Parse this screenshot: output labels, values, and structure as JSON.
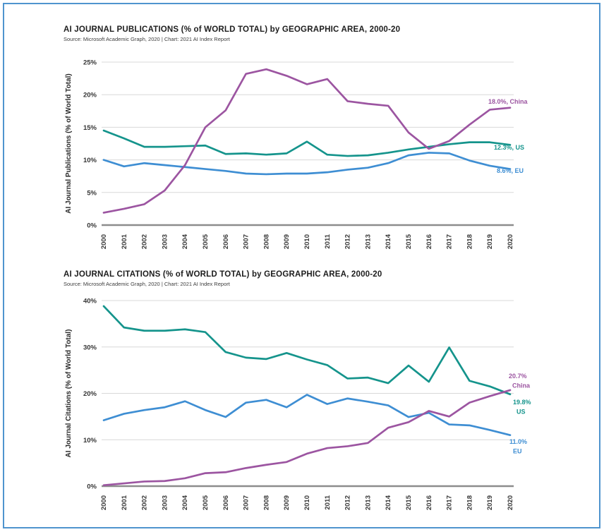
{
  "page": {
    "border_color": "#4f94ce",
    "background": "#ffffff"
  },
  "chart_data": [
    {
      "type": "line",
      "title": "AI JOURNAL PUBLICATIONS (% of WORLD TOTAL) by GEOGRAPHIC AREA, 2000-20",
      "source": "Source: Microsoft Academic Graph, 2020 | Chart: 2021 AI Index Report",
      "ylabel": "AI Journal Publications (% of World Total)",
      "xlabel": "",
      "ylim": [
        0,
        25
      ],
      "ytick_step": 5,
      "ytick_suffix": "%",
      "grid": true,
      "legend_position": "line-end-labels",
      "categories": [
        "2000",
        "2001",
        "2002",
        "2003",
        "2004",
        "2005",
        "2006",
        "2007",
        "2008",
        "2009",
        "2010",
        "2011",
        "2012",
        "2013",
        "2014",
        "2015",
        "2016",
        "2017",
        "2018",
        "2019",
        "2020"
      ],
      "series": [
        {
          "name": "US",
          "color": "#15948c",
          "end_label": [
            "12.3%, US"
          ],
          "values": [
            14.5,
            13.3,
            12.0,
            12.0,
            12.1,
            12.2,
            10.9,
            11.0,
            10.8,
            11.0,
            12.8,
            10.8,
            10.6,
            10.7,
            11.1,
            11.6,
            12.0,
            12.4,
            12.7,
            12.7,
            12.3
          ]
        },
        {
          "name": "EU",
          "color": "#3e8ed3",
          "end_label": [
            "8.6%, EU"
          ],
          "values": [
            10.0,
            9.0,
            9.5,
            9.2,
            8.9,
            8.6,
            8.3,
            7.9,
            7.8,
            7.9,
            7.9,
            8.1,
            8.5,
            8.8,
            9.5,
            10.7,
            11.1,
            11.0,
            9.9,
            9.1,
            8.6
          ]
        },
        {
          "name": "China",
          "color": "#9c55a1",
          "end_label": [
            "18.0%, China"
          ],
          "values": [
            1.9,
            2.5,
            3.2,
            5.3,
            9.2,
            15.0,
            17.6,
            23.2,
            23.9,
            22.9,
            21.6,
            22.4,
            19.0,
            18.6,
            18.3,
            14.2,
            11.7,
            12.9,
            15.4,
            17.7,
            18.0
          ]
        }
      ]
    },
    {
      "type": "line",
      "title": "AI JOURNAL CITATIONS (% of WORLD TOTAL) by GEOGRAPHIC AREA, 2000-20",
      "source": "Source: Microsoft Academic Graph, 2020 | Chart: 2021 AI Index Report",
      "ylabel": "AI Journal Citations (% of World Total)",
      "xlabel": "",
      "ylim": [
        0,
        40
      ],
      "ytick_step": 10,
      "ytick_suffix": "%",
      "grid": true,
      "legend_position": "line-end-labels",
      "categories": [
        "2000",
        "2001",
        "2002",
        "2003",
        "2004",
        "2005",
        "2006",
        "2007",
        "2008",
        "2009",
        "2010",
        "2011",
        "2012",
        "2013",
        "2014",
        "2015",
        "2016",
        "2017",
        "2018",
        "2019",
        "2020"
      ],
      "series": [
        {
          "name": "US",
          "color": "#15948c",
          "end_label": [
            "19.8%",
            "US"
          ],
          "values": [
            38.8,
            34.2,
            33.5,
            33.5,
            33.8,
            33.2,
            28.9,
            27.7,
            27.4,
            28.7,
            27.3,
            26.1,
            23.2,
            23.4,
            22.2,
            26.0,
            22.5,
            29.9,
            22.7,
            21.5,
            19.8
          ]
        },
        {
          "name": "EU",
          "color": "#3e8ed3",
          "end_label": [
            "11.0%",
            "EU"
          ],
          "values": [
            14.2,
            15.6,
            16.4,
            17.0,
            18.3,
            16.4,
            14.9,
            18.0,
            18.6,
            17.0,
            19.7,
            17.7,
            18.9,
            18.2,
            17.4,
            14.9,
            15.8,
            13.3,
            13.1,
            12.1,
            11.0
          ]
        },
        {
          "name": "China",
          "color": "#9c55a1",
          "end_label": [
            "20.7%",
            "China"
          ],
          "values": [
            0.2,
            0.6,
            1.0,
            1.1,
            1.7,
            2.8,
            3.0,
            3.9,
            4.6,
            5.2,
            7.0,
            8.2,
            8.6,
            9.3,
            12.6,
            13.8,
            16.2,
            15.0,
            18.0,
            19.4,
            20.7
          ]
        }
      ]
    }
  ]
}
